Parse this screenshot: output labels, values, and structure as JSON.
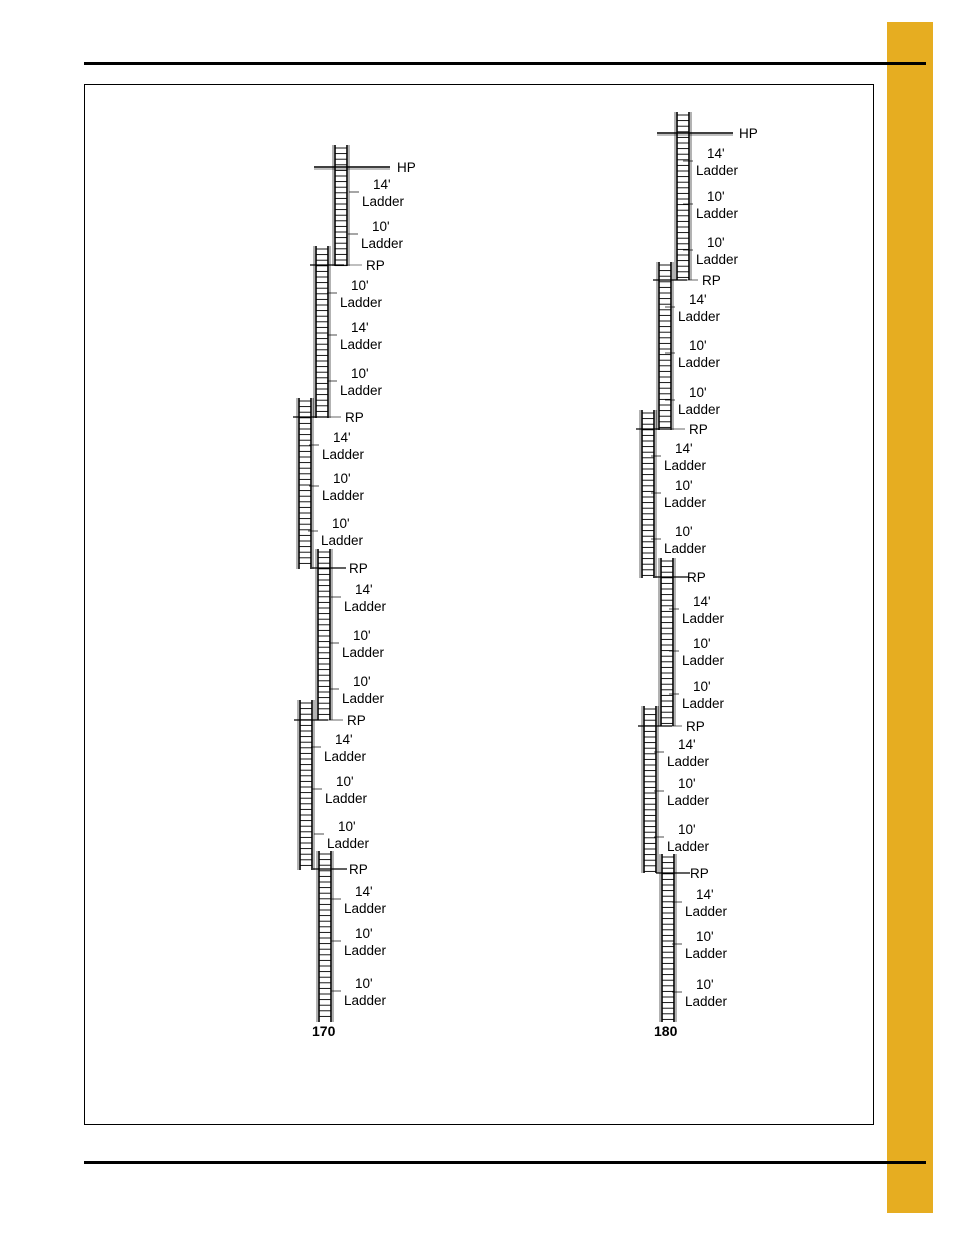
{
  "colors": {
    "tab": "#e6ad21",
    "ink": "#000000",
    "paper": "#ffffff"
  },
  "labels": {
    "hp": "HP",
    "rp": "RP",
    "ladder": "Ladder",
    "len14": "14'",
    "len10": "10'"
  },
  "columns": [
    {
      "id": "170",
      "caption": "170",
      "landings": [
        "HP",
        "RP",
        "RP",
        "RP",
        "RP",
        "RP"
      ],
      "ladders_per_section": [
        "14'",
        "10'",
        "10'"
      ]
    },
    {
      "id": "180",
      "caption": "180",
      "landings": [
        "HP",
        "RP",
        "RP",
        "RP",
        "RP",
        "RP"
      ],
      "ladders_per_section": [
        "14'",
        "10'",
        "10'"
      ]
    }
  ]
}
